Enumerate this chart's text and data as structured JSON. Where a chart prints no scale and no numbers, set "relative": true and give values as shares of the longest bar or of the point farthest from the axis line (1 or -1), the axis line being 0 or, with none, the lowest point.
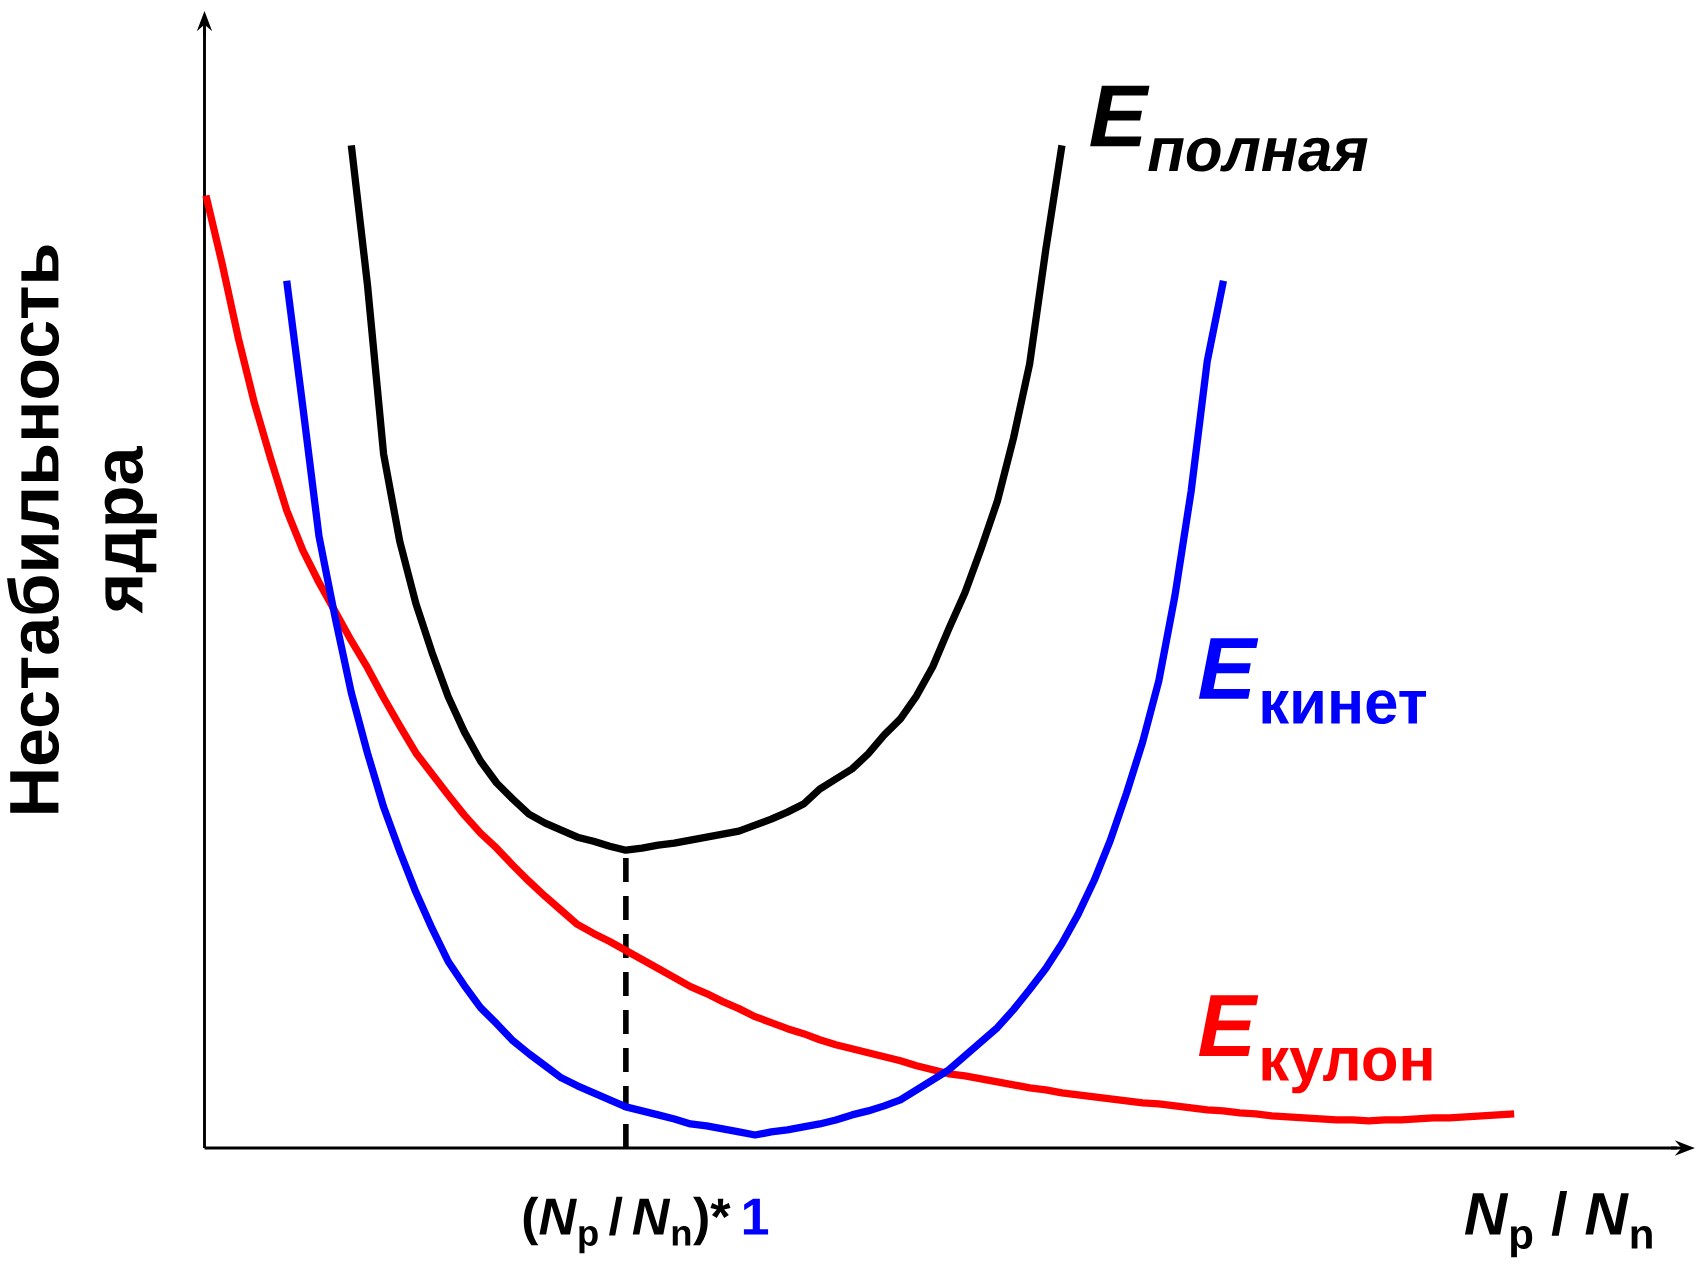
{
  "chart_data": {
    "type": "line",
    "relative": true,
    "xlabel": "*N*$_{p}$ / *N*$_{n}$",
    "ylabel": "Нестабильность ядра",
    "categories": [
      null,
      null,
      null,
      null,
      null,
      null,
      null,
      null,
      null,
      null,
      null,
      null,
      null,
      null,
      null,
      null,
      null,
      null,
      null,
      null,
      null,
      null,
      null,
      null,
      null,
      null,
      "(*N*$_{p}$ / *N*$_{n}$)*",
      null,
      null,
      null,
      null,
      null,
      null,
      null,
      "1",
      null,
      null,
      null,
      null,
      null,
      null,
      null,
      null,
      null,
      null,
      null,
      null,
      null,
      null,
      null,
      null,
      null,
      null,
      null,
      null,
      null,
      null,
      null,
      null,
      null,
      null,
      null,
      null,
      null,
      null,
      null,
      null,
      null,
      null,
      null,
      null,
      null,
      null,
      null,
      null,
      null,
      null,
      null,
      null,
      null,
      null,
      null,
      null,
      null,
      null,
      null,
      null,
      null,
      null,
      null,
      null,
      null,
      null
    ],
    "marker": "none",
    "ref_lines": [
      {
        "axis": "x",
        "value": "(*N*$_{p}$ / *N*$_{n}$)*",
        "color": "#000000",
        "line_style": "dashed"
      }
    ],
    "series": [
      {
        "name": "*E$_{полная}$*",
        "color": "#000000",
        "values": [
          null,
          null,
          null,
          null,
          null,
          null,
          null,
          null,
          null,
          1,
          0.861,
          0.692,
          0.605,
          0.543,
          0.494,
          0.45,
          0.415,
          0.386,
          0.364,
          0.348,
          0.333,
          0.324,
          0.317,
          0.31,
          0.306,
          0.301,
          0.297,
          0.299,
          0.302,
          0.304,
          0.307,
          0.31,
          0.313,
          0.316,
          0.322,
          0.328,
          0.335,
          0.343,
          0.358,
          0.368,
          0.378,
          0.393,
          0.412,
          0.428,
          0.451,
          0.48,
          0.518,
          0.554,
          0.598,
          0.645,
          0.708,
          0.782,
          0.896,
          1,
          null,
          null,
          null,
          null,
          null,
          null,
          null,
          null,
          null,
          null,
          null,
          null,
          null,
          null,
          null,
          null,
          null,
          null,
          null,
          null,
          null,
          null,
          null,
          null,
          null,
          null,
          null,
          null,
          null,
          null,
          null,
          null,
          null,
          null,
          null,
          null,
          null,
          null,
          null
        ]
      },
      {
        "name": "*E*$_{кинет}$",
        "color": "#0000ff",
        "values": [
          null,
          null,
          null,
          null,
          null,
          0.865,
          0.739,
          0.61,
          0.529,
          0.454,
          0.394,
          0.34,
          0.296,
          0.255,
          0.219,
          0.186,
          0.162,
          0.14,
          0.124,
          0.107,
          0.094,
          0.082,
          0.07,
          0.062,
          0.055,
          0.048,
          0.041,
          0.037,
          0.033,
          0.029,
          0.024,
          0.022,
          0.019,
          0.016,
          0.013,
          0.016,
          0.018,
          0.021,
          0.024,
          0.028,
          0.033,
          0.037,
          0.042,
          0.048,
          0.058,
          0.068,
          0.078,
          0.092,
          0.106,
          0.12,
          0.138,
          0.158,
          0.179,
          0.204,
          0.233,
          0.267,
          0.307,
          0.354,
          0.405,
          0.466,
          0.551,
          0.655,
          0.785,
          0.865,
          null,
          null,
          null,
          null,
          null,
          null,
          null,
          null,
          null,
          null,
          null,
          null,
          null,
          null,
          null,
          null,
          null,
          null,
          null,
          null,
          null,
          null,
          null,
          null,
          null,
          null,
          null,
          null,
          null
        ]
      },
      {
        "name": "*E*$_{кулон}$",
        "color": "#ff0000",
        "values": [
          0.95,
          0.882,
          0.808,
          0.743,
          0.688,
          0.636,
          0.596,
          0.564,
          0.535,
          0.506,
          0.479,
          0.449,
          0.421,
          0.394,
          0.373,
          0.352,
          0.332,
          0.314,
          0.299,
          0.282,
          0.266,
          0.251,
          0.237,
          0.223,
          0.214,
          0.206,
          0.197,
          0.188,
          0.179,
          0.17,
          0.161,
          0.154,
          0.146,
          0.139,
          0.131,
          0.125,
          0.119,
          0.114,
          0.108,
          0.103,
          0.099,
          0.095,
          0.091,
          0.087,
          0.082,
          0.078,
          0.074,
          0.072,
          0.069,
          0.066,
          0.063,
          0.06,
          0.058,
          0.055,
          0.053,
          0.051,
          0.049,
          0.047,
          0.045,
          0.044,
          0.042,
          0.04,
          0.038,
          0.037,
          0.035,
          0.034,
          0.032,
          0.031,
          0.03,
          0.029,
          0.028,
          0.028,
          0.027,
          0.028,
          0.028,
          0.029,
          0.03,
          0.03,
          0.031,
          0.032,
          0.033,
          0.034,
          null,
          null,
          null,
          null,
          null,
          null,
          null,
          null,
          null,
          null,
          null
        ]
      }
    ]
  }
}
